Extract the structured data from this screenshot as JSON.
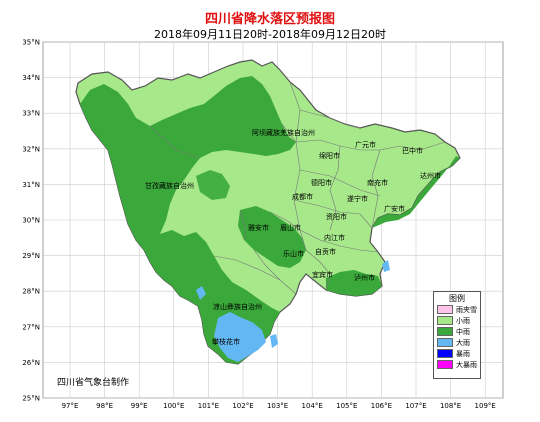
{
  "title": "四川省降水落区预报图",
  "subtitle": "2018年09月11日20时-2018年09月12日20时",
  "credit": "四川省气象台制作",
  "y_axis_labels": [
    "35°N",
    "34°N",
    "33°N",
    "32°N",
    "31°N",
    "30°N",
    "29°N",
    "28°N",
    "27°N",
    "26°N",
    "25°N"
  ],
  "x_axis_labels": [
    "97°E",
    "98°E",
    "99°E",
    "100°E",
    "101°E",
    "102°E",
    "103°E",
    "104°E",
    "105°E",
    "106°E",
    "107°E",
    "108°E",
    "109°E"
  ],
  "legend": {
    "title": "图例",
    "items": [
      {
        "label": "雨夹雪",
        "color": "#ffc4e8"
      },
      {
        "label": "小雨",
        "color": "#a6e88a"
      },
      {
        "label": "中雨",
        "color": "#3aa83a"
      },
      {
        "label": "大雨",
        "color": "#63b7f3"
      },
      {
        "label": "暴雨",
        "color": "#0000ff"
      },
      {
        "label": "大暴雨",
        "color": "#ff00ff"
      }
    ]
  },
  "place_labels": {
    "aba": "阿坝藏族羌族自治州",
    "ganzi": "甘孜藏族自治州",
    "liangshan": "凉山彝族自治州",
    "guangyuan": "广元市",
    "bazhong": "巴中市",
    "mianyang": "绵阳市",
    "dazhou": "达州市",
    "nanchong": "南充市",
    "deyang": "德阳市",
    "suining": "遂宁市",
    "guangan": "广安市",
    "chengdu": "成都市",
    "ziyang": "资阳市",
    "yaan": "雅安市",
    "meishan": "眉山市",
    "neijiang": "内江市",
    "leshan": "乐山市",
    "zigong": "自贡市",
    "yibin": "宜宾市",
    "luzhou": "泸州市",
    "panzhihua": "攀枝花市"
  },
  "colors": {
    "light_rain": "#a6e88a",
    "moderate_rain": "#3aa83a",
    "heavy_rain": "#63b7f3",
    "border": "#555555",
    "title": "#e01010"
  }
}
